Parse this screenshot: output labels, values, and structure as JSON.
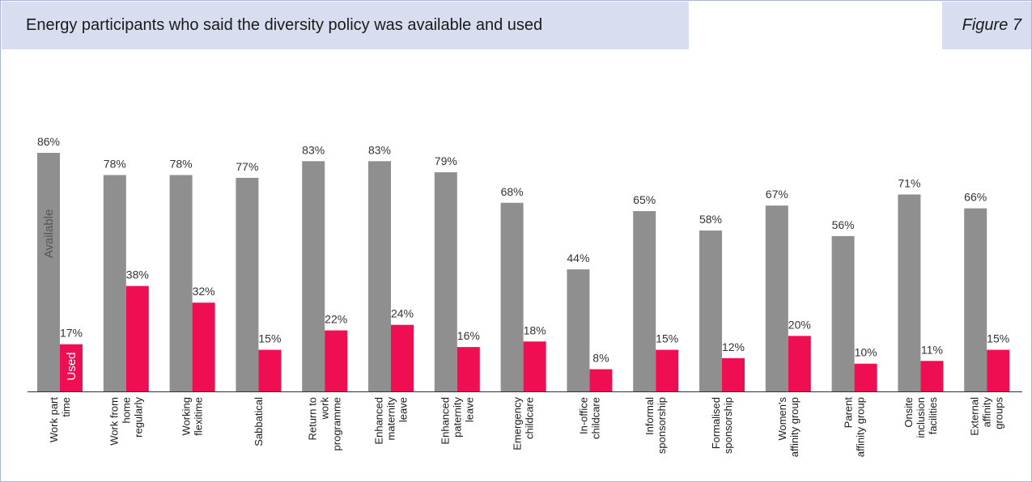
{
  "header": {
    "title": "Energy participants who said the diversity policy was available and used",
    "figure_label": "Figure 7"
  },
  "colors": {
    "available": "#8f8f8f",
    "used": "#ef0e52",
    "header_background": "#d8def0",
    "frame_border": "#a9b6d3"
  },
  "chart_data": {
    "type": "bar",
    "title": "",
    "xlabel": "",
    "ylabel": "",
    "ylim": [
      0,
      100
    ],
    "grid": false,
    "legend": "labels inside first bars",
    "categories": [
      [
        "Work part",
        "time"
      ],
      [
        "Work from",
        "home",
        "regularly"
      ],
      [
        "Working",
        "flexitime"
      ],
      [
        "Sabbatical"
      ],
      [
        "Return to",
        "work",
        "programme"
      ],
      [
        "Enhanced",
        "maternity",
        "leave"
      ],
      [
        "Enhanced",
        "paternity",
        "leave"
      ],
      [
        "Emergency",
        "childcare"
      ],
      [
        "In-office",
        "childcare"
      ],
      [
        "Informal",
        "sponsorship"
      ],
      [
        "Formalised",
        "sponsorship"
      ],
      [
        "Women's",
        "affinity group"
      ],
      [
        "Parent",
        "affinity group"
      ],
      [
        "Onsite",
        "inclusion",
        "facilities"
      ],
      [
        "External",
        "affinity",
        "groups"
      ]
    ],
    "series": [
      {
        "name": "Available",
        "values": [
          86,
          78,
          78,
          77,
          83,
          83,
          79,
          68,
          44,
          65,
          58,
          67,
          56,
          71,
          66
        ],
        "labels": [
          "86%",
          "78%",
          "78%",
          "77%",
          "83%",
          "83%",
          "79%",
          "68%",
          "44%",
          "65%",
          "58%",
          "67%",
          "56%",
          "71%",
          "66%"
        ]
      },
      {
        "name": "Used",
        "values": [
          17,
          38,
          32,
          15,
          22,
          24,
          16,
          18,
          8,
          15,
          12,
          20,
          10,
          11,
          15
        ],
        "labels": [
          "17%",
          "38%",
          "32%",
          "15%",
          "22%",
          "24%",
          "16%",
          "18%",
          "8%",
          "15%",
          "12%",
          "20%",
          "10%",
          "11%",
          "15%"
        ]
      }
    ]
  }
}
